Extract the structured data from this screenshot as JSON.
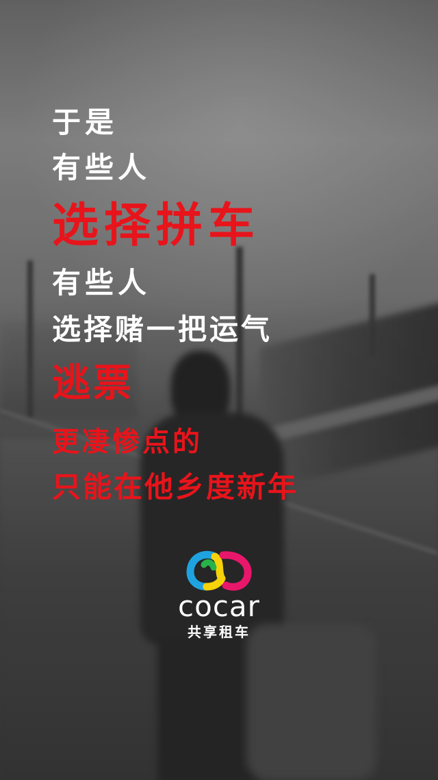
{
  "lines": [
    {
      "text": "于是",
      "color": "#ffffff"
    },
    {
      "text": "有些人",
      "color": "#ffffff"
    },
    {
      "text": "选择拼车",
      "color": "#e8141b"
    },
    {
      "text": "有些人",
      "color": "#ffffff"
    },
    {
      "text": "选择赌一把运气",
      "color": "#ffffff"
    },
    {
      "text": "逃票",
      "color": "#e8141b"
    },
    {
      "text": "更凄惨点的",
      "color": "#e8141b"
    },
    {
      "text": "只能在他乡度新年",
      "color": "#e8141b"
    }
  ],
  "logo": {
    "wordmark": "cocar",
    "subtitle": "共享租车",
    "icon": "cocar-ring-logo-icon",
    "colors": [
      "#1fa3e0",
      "#f5d20a",
      "#e8176b",
      "#27b24a"
    ]
  },
  "background": {
    "description_icon": "train-platform-photo",
    "tone": "grayscale"
  }
}
